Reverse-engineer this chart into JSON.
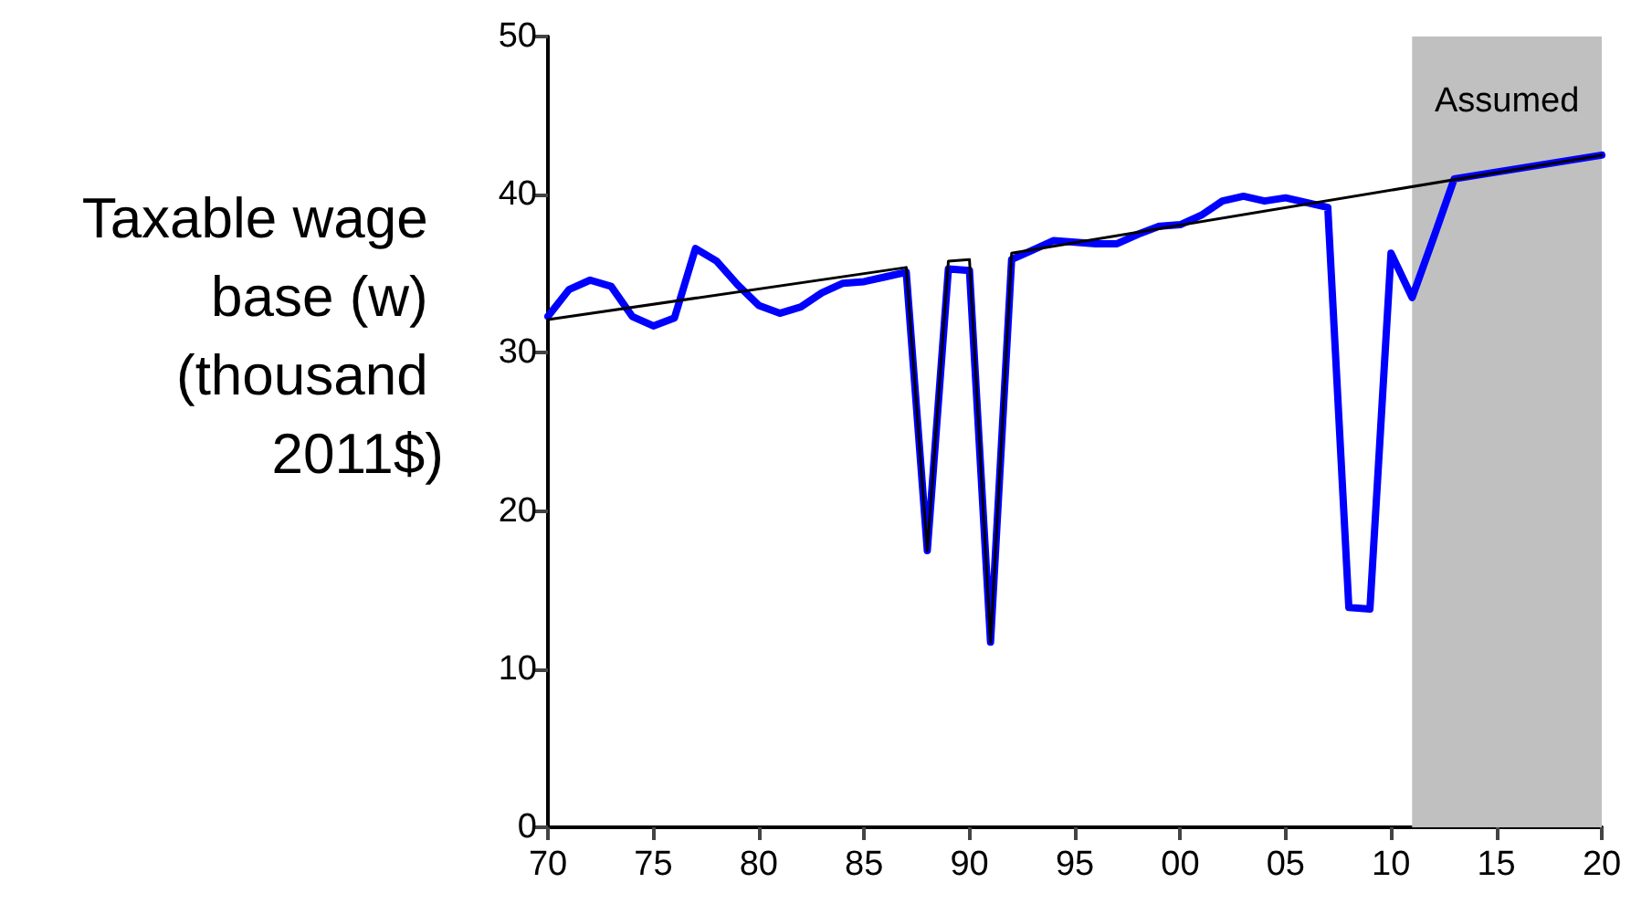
{
  "chart_data": {
    "type": "line",
    "ylabel": "Taxable wage base (w) (thousand 2011$)",
    "xlim": [
      1970,
      2020
    ],
    "xticks": [
      {
        "value": 1970,
        "label": "70"
      },
      {
        "value": 1975,
        "label": "75"
      },
      {
        "value": 1980,
        "label": "80"
      },
      {
        "value": 1985,
        "label": "85"
      },
      {
        "value": 1990,
        "label": "90"
      },
      {
        "value": 1995,
        "label": "95"
      },
      {
        "value": 2000,
        "label": "00"
      },
      {
        "value": 2005,
        "label": "05"
      },
      {
        "value": 2010,
        "label": "10"
      },
      {
        "value": 2015,
        "label": "15"
      },
      {
        "value": 2020,
        "label": "20"
      }
    ],
    "ylim": [
      0,
      50
    ],
    "yticks": [
      0,
      10,
      20,
      30,
      40,
      50
    ],
    "grid": false,
    "marker": "none",
    "line_style": "solid",
    "bands": [
      {
        "axis": "x",
        "from": 2011,
        "to": 2020,
        "label": "Assumed",
        "color": "#c0c0c0"
      }
    ],
    "series": [
      {
        "color": "#0000ff",
        "x": [
          1970,
          1971,
          1972,
          1973,
          1974,
          1975,
          1976,
          1977,
          1978,
          1979,
          1980,
          1981,
          1982,
          1983,
          1984,
          1985,
          1986,
          1987,
          1988,
          1989,
          1990,
          1991,
          1992,
          1993,
          1994,
          1995,
          1996,
          1997,
          1998,
          1999,
          2000,
          2001,
          2002,
          2003,
          2004,
          2005,
          2006,
          2007,
          2008,
          2009,
          2010,
          2011,
          2012,
          2013,
          2020
        ],
        "values": [
          32.3,
          34.0,
          34.6,
          34.2,
          32.3,
          31.7,
          32.2,
          36.6,
          35.8,
          34.3,
          33.0,
          32.5,
          32.9,
          33.8,
          34.4,
          34.5,
          34.8,
          35.1,
          17.5,
          35.3,
          35.2,
          11.7,
          35.9,
          36.5,
          37.1,
          37.0,
          36.9,
          36.9,
          37.5,
          38.0,
          38.1,
          38.7,
          39.6,
          39.9,
          39.6,
          39.8,
          39.5,
          39.2,
          13.9,
          13.8,
          36.3,
          33.5,
          37.2,
          41.0,
          42.5
        ]
      },
      {
        "color": "#000000",
        "x": [
          1970,
          1987,
          1988,
          1989,
          1990,
          1991,
          1992,
          2020
        ],
        "values": [
          32.1,
          35.4,
          17.5,
          35.8,
          35.9,
          11.7,
          36.3,
          42.5
        ]
      }
    ]
  }
}
